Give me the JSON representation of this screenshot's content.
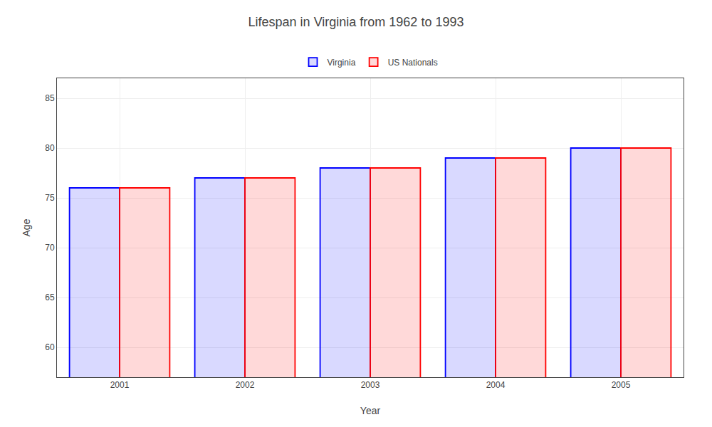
{
  "chart_data": {
    "type": "bar",
    "title": "Lifespan in Virginia from 1962 to 1993",
    "xlabel": "Year",
    "ylabel": "Age",
    "categories": [
      "2001",
      "2002",
      "2003",
      "2004",
      "2005"
    ],
    "series": [
      {
        "name": "Virginia",
        "color": "#0000ff",
        "values": [
          76,
          77,
          78,
          79,
          80
        ]
      },
      {
        "name": "US Nationals",
        "color": "#ff0000",
        "values": [
          76,
          77,
          78,
          79,
          80
        ]
      }
    ],
    "ylim": [
      57,
      87
    ],
    "yticks": [
      60,
      65,
      70,
      75,
      80,
      85
    ],
    "grid": true,
    "legend": "top"
  }
}
